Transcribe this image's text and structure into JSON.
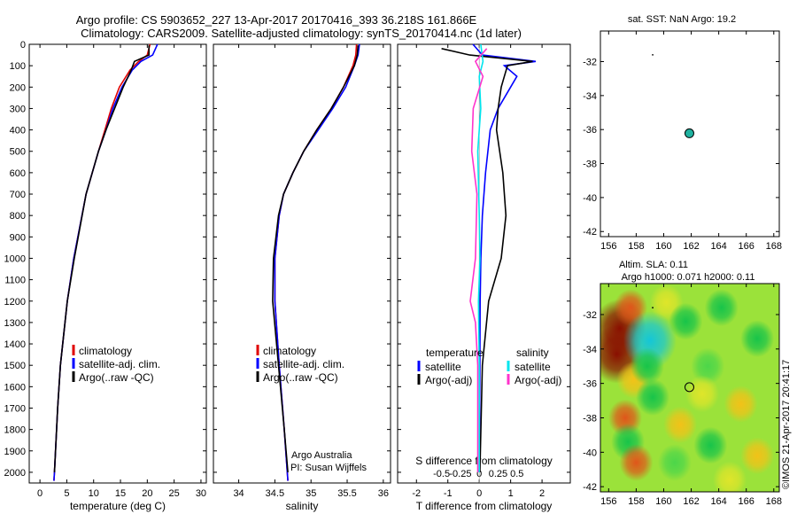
{
  "header": {
    "line1": "Argo profile: CS 5903652_227 13-Apr-2017 20170416_393 36.218S 161.866E",
    "line2": "Climatology: CARS2009. Satellite-adjusted climatology: synTS_20170414.nc (1d later)"
  },
  "credits": {
    "line1": "Argo Australia",
    "line2": "PI: Susan Wijffels",
    "vertical": "©IMOS 21-Apr-2017 20:41:17"
  },
  "colors": {
    "climatology": "#e00000",
    "satellite": "#0000ff",
    "argo": "#000000",
    "sal_satellite": "#00e5ee",
    "sal_argo": "#ff33cc",
    "float_marker": "#20b2a0"
  },
  "depth_axis": {
    "range": [
      0,
      2050
    ],
    "ticks": [
      "0",
      "100",
      "200",
      "300",
      "400",
      "500",
      "600",
      "700",
      "800",
      "900",
      "1000",
      "1100",
      "1200",
      "1300",
      "1400",
      "1500",
      "1600",
      "1700",
      "1800",
      "1900",
      "2000"
    ]
  },
  "chart_data": [
    {
      "type": "line",
      "id": "temperature",
      "xlabel": "temperature (deg C)",
      "ylabel": "",
      "xlim": [
        -2,
        31
      ],
      "xticks": [
        "0",
        "5",
        "10",
        "15",
        "20",
        "25",
        "30"
      ],
      "ylim": [
        0,
        2050
      ],
      "legend": [
        "climatology",
        "satellite-adj. clim.",
        "Argo(..raw -QC)"
      ],
      "series": [
        {
          "name": "climatology",
          "depth": [
            0,
            50,
            80,
            120,
            200,
            300,
            400,
            500,
            700,
            1000,
            1200,
            1500,
            1700,
            2000,
            2040
          ],
          "values": [
            20.5,
            20.0,
            18.4,
            16.8,
            14.8,
            13.3,
            12.1,
            10.9,
            8.6,
            6.3,
            5.1,
            3.8,
            3.3,
            2.7,
            2.6
          ]
        },
        {
          "name": "satellite-adj. clim.",
          "depth": [
            0,
            50,
            80,
            120,
            200,
            300,
            400,
            500,
            700,
            1000,
            1200,
            1500,
            1700,
            2000,
            2040
          ],
          "values": [
            21.9,
            21.0,
            18.8,
            17.2,
            15.3,
            13.6,
            12.3,
            10.9,
            8.6,
            6.3,
            5.1,
            3.8,
            3.3,
            2.7,
            2.6
          ]
        },
        {
          "name": "Argo(..raw -QC)",
          "depth": [
            5,
            50,
            80,
            120,
            200,
            300,
            400,
            500,
            700,
            1000,
            1200,
            1500,
            1700,
            2000
          ],
          "values": [
            20.3,
            20.3,
            17.6,
            17.0,
            15.5,
            13.9,
            12.3,
            10.9,
            8.6,
            6.4,
            5.1,
            3.8,
            3.3,
            2.7
          ]
        }
      ]
    },
    {
      "type": "line",
      "id": "salinity",
      "xlabel": "salinity",
      "ylabel": "",
      "xlim": [
        33.65,
        36.1
      ],
      "xticks": [
        "34",
        "34.5",
        "35",
        "35.5",
        "36"
      ],
      "ylim": [
        0,
        2050
      ],
      "legend": [
        "climatology",
        "satellite-adj. clim.",
        "Argo(..raw -QC)"
      ],
      "series": [
        {
          "name": "climatology",
          "depth": [
            0,
            50,
            100,
            200,
            300,
            400,
            500,
            600,
            700,
            800,
            1000,
            1200,
            1500,
            1800,
            2040
          ],
          "values": [
            35.63,
            35.62,
            35.58,
            35.45,
            35.28,
            35.08,
            34.9,
            34.75,
            34.62,
            34.56,
            34.5,
            34.5,
            34.56,
            34.63,
            34.68
          ]
        },
        {
          "name": "satellite-adj. clim.",
          "depth": [
            0,
            50,
            100,
            200,
            300,
            400,
            500,
            600,
            700,
            800,
            1000,
            1200,
            1500,
            1800,
            2040
          ],
          "values": [
            35.67,
            35.65,
            35.6,
            35.48,
            35.3,
            35.1,
            34.9,
            34.75,
            34.62,
            34.56,
            34.5,
            34.5,
            34.56,
            34.63,
            34.68
          ]
        },
        {
          "name": "Argo(..raw -QC)",
          "depth": [
            5,
            50,
            100,
            200,
            300,
            400,
            500,
            600,
            700,
            800,
            1000,
            1200,
            1500,
            1800,
            2000
          ],
          "values": [
            35.65,
            35.64,
            35.6,
            35.45,
            35.28,
            35.08,
            34.9,
            34.75,
            34.62,
            34.55,
            34.48,
            34.47,
            34.55,
            34.63,
            34.68
          ]
        }
      ]
    },
    {
      "type": "line",
      "id": "differences",
      "xlabel": "T difference from climatology",
      "xlabel_top": "S difference from climatology",
      "ylabel": "",
      "xlim": [
        -2.6,
        2.9
      ],
      "xticks": [
        "-2",
        "-1",
        "0",
        "1",
        "2"
      ],
      "xticks_top": [
        "-0.5",
        "-0.25",
        "0",
        "0.25",
        "0.5"
      ],
      "ylim": [
        0,
        2050
      ],
      "legend_titles": [
        "temperature",
        "salinity"
      ],
      "legend": [
        "satellite",
        "Argo(-adj)",
        "satellite",
        "Argo(-adj)"
      ],
      "series": [
        {
          "name": "satellite",
          "group": "temperature",
          "depth": [
            0,
            50,
            80,
            100,
            150,
            200,
            300,
            400,
            600,
            800,
            1000,
            1200,
            1500,
            2000
          ],
          "values": [
            -0.2,
            0.1,
            1.8,
            0.8,
            1.2,
            1.0,
            0.6,
            0.35,
            0.2,
            0.1,
            0.05,
            0.03,
            0.02,
            0.0
          ]
        },
        {
          "name": "Argo(-adj)",
          "group": "temperature",
          "depth": [
            20,
            50,
            80,
            100,
            150,
            200,
            300,
            400,
            600,
            800,
            1000,
            1200,
            1500,
            2000
          ],
          "values": [
            -1.2,
            -0.3,
            1.7,
            0.9,
            0.8,
            0.7,
            0.6,
            0.55,
            0.75,
            0.85,
            0.7,
            0.3,
            0.1,
            0.02
          ]
        },
        {
          "name": "satellite",
          "group": "salinity",
          "depth": [
            0,
            80,
            150,
            300,
            500,
            800,
            1000,
            1200,
            1500,
            2000
          ],
          "values": [
            0.02,
            0.05,
            0.0,
            0.02,
            -0.02,
            0.0,
            0.01,
            -0.01,
            0.0,
            0.0
          ]
        },
        {
          "name": "Argo(-adj)",
          "group": "salinity",
          "depth": [
            20,
            80,
            150,
            300,
            500,
            700,
            1000,
            1200,
            1300,
            1500,
            2000
          ],
          "values": [
            0.1,
            -0.05,
            0.05,
            -0.08,
            -0.1,
            -0.03,
            -0.05,
            -0.12,
            -0.05,
            -0.02,
            -0.02
          ]
        }
      ]
    },
    {
      "type": "scatter",
      "id": "sst-map",
      "title": "sat. SST: NaN Argo: 19.2",
      "xlim": [
        155.4,
        168.4
      ],
      "ylim": [
        -42.3,
        -30.2
      ],
      "xticks": [
        "156",
        "158",
        "160",
        "162",
        "164",
        "166",
        "168"
      ],
      "yticks": [
        "-32",
        "-34",
        "-36",
        "-38",
        "-40",
        "-42"
      ],
      "points": [
        {
          "x": 161.866,
          "y": -36.218
        }
      ]
    },
    {
      "type": "heatmap",
      "id": "sla-map",
      "title_line1": "Altim. SLA: 0.11",
      "title_line2": "Argo h1000: 0.071 h2000: 0.11",
      "xlim": [
        155.4,
        168.4
      ],
      "ylim": [
        -42.3,
        -30.2
      ],
      "xticks": [
        "156",
        "158",
        "160",
        "162",
        "164",
        "166",
        "168"
      ],
      "yticks": [
        "-32",
        "-34",
        "-36",
        "-38",
        "-40",
        "-42"
      ],
      "points": [
        {
          "x": 161.866,
          "y": -36.218
        }
      ],
      "features": [
        {
          "x": 156.8,
          "y": -32.8,
          "v": 1.0
        },
        {
          "x": 156.6,
          "y": -34.3,
          "v": 1.0
        },
        {
          "x": 157.6,
          "y": -31.6,
          "v": 0.75
        },
        {
          "x": 157.8,
          "y": -35.8,
          "v": 0.5
        },
        {
          "x": 160.2,
          "y": -31.3,
          "v": 0.3
        },
        {
          "x": 159.0,
          "y": -33.5,
          "v": -1.0
        },
        {
          "x": 158.8,
          "y": -35.0,
          "v": -0.8
        },
        {
          "x": 159.2,
          "y": -36.8,
          "v": -0.6
        },
        {
          "x": 161.6,
          "y": -32.4,
          "v": -0.7
        },
        {
          "x": 164.2,
          "y": -31.6,
          "v": -0.6
        },
        {
          "x": 166.8,
          "y": -33.4,
          "v": -0.7
        },
        {
          "x": 163.2,
          "y": -35.0,
          "v": -0.5
        },
        {
          "x": 157.2,
          "y": -38.0,
          "v": 0.6
        },
        {
          "x": 157.4,
          "y": -39.4,
          "v": -0.7
        },
        {
          "x": 158.0,
          "y": -40.6,
          "v": 0.6
        },
        {
          "x": 161.2,
          "y": -38.4,
          "v": 0.45
        },
        {
          "x": 160.8,
          "y": -40.6,
          "v": -0.5
        },
        {
          "x": 163.4,
          "y": -39.6,
          "v": -0.6
        },
        {
          "x": 165.6,
          "y": -37.2,
          "v": 0.35
        },
        {
          "x": 166.8,
          "y": -40.2,
          "v": 0.5
        },
        {
          "x": 164.8,
          "y": -41.6,
          "v": 0.3
        },
        {
          "x": 162.8,
          "y": -36.6,
          "v": 0.25
        }
      ]
    }
  ]
}
